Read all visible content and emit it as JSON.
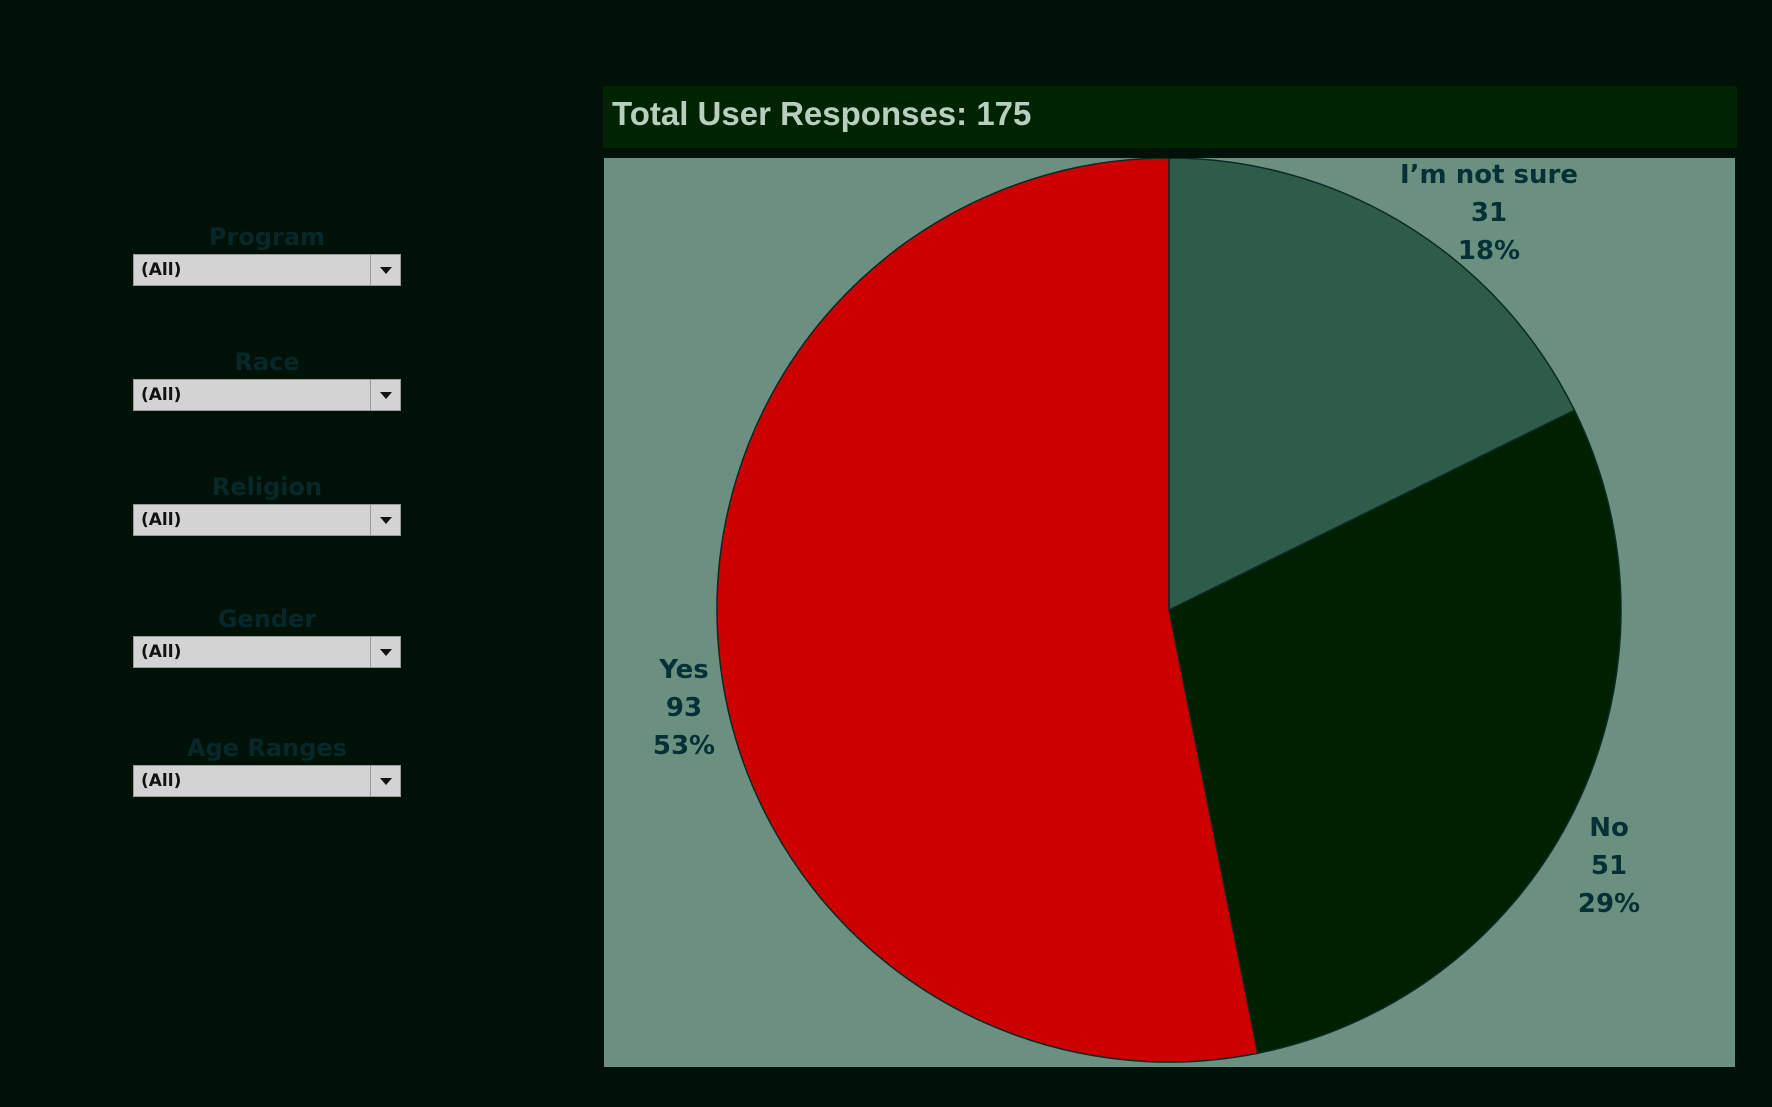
{
  "header": {
    "title": "Total User Responses: 175"
  },
  "filters": [
    {
      "label": "Program",
      "value": "(All)"
    },
    {
      "label": "Race",
      "value": "(All)"
    },
    {
      "label": "Religion",
      "value": "(All)"
    },
    {
      "label": "Gender",
      "value": "(All)"
    },
    {
      "label": "Age Ranges",
      "value": "(All)"
    }
  ],
  "chart_data": {
    "type": "pie",
    "title": "Total User Responses: 175",
    "slices": [
      {
        "category": "I’m not sure",
        "value": 31,
        "percent": "18%",
        "color": "#2f5c48"
      },
      {
        "category": "No",
        "value": 51,
        "percent": "29%",
        "color": "#002100"
      },
      {
        "category": "Yes",
        "value": 93,
        "percent": "53%",
        "color": "#cc0000"
      }
    ]
  }
}
